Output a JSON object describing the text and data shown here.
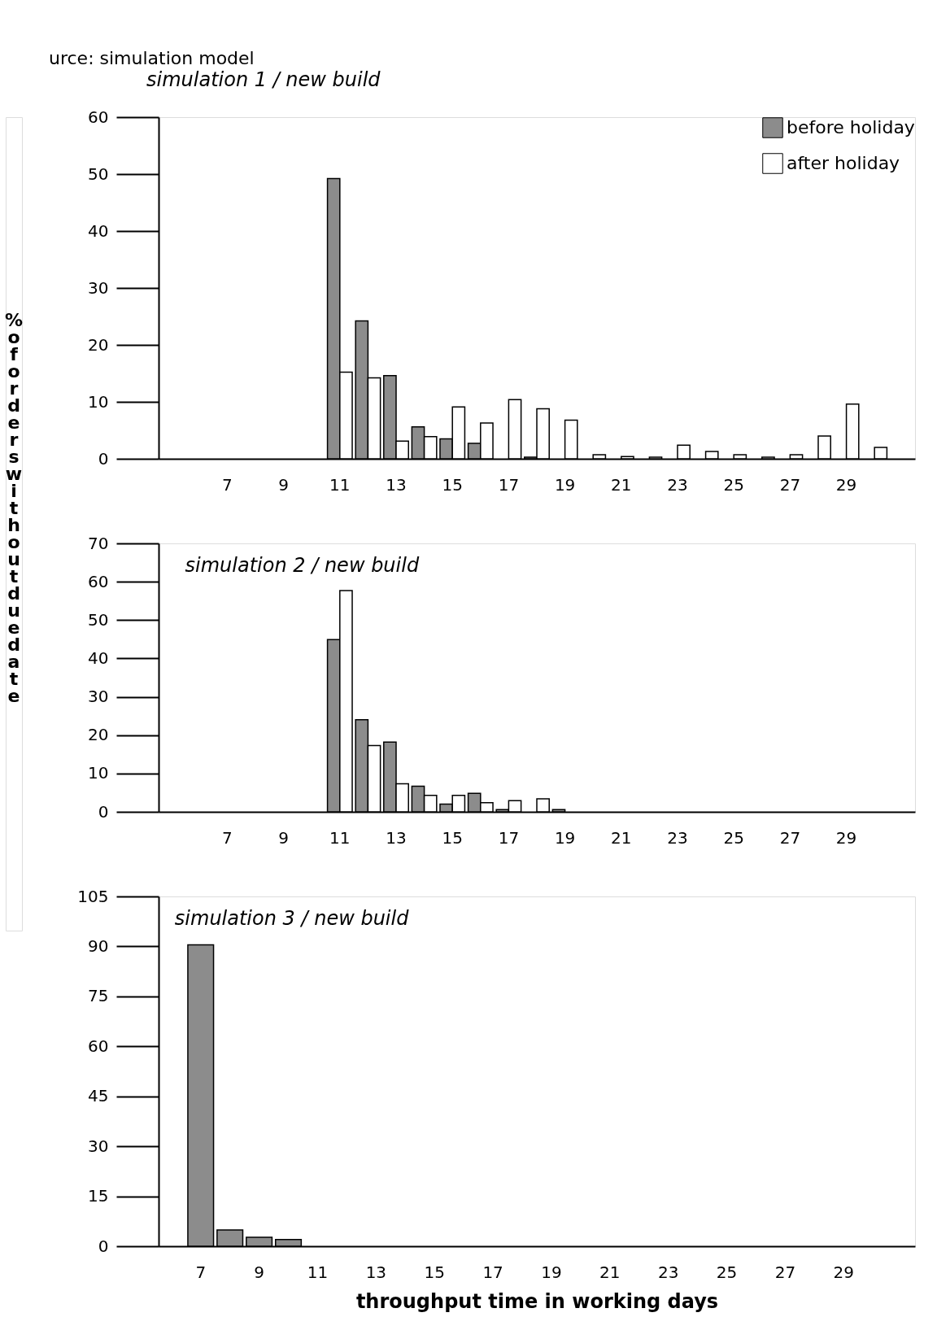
{
  "chart_data": [
    {
      "type": "bar",
      "title": "simulation 1 / new build",
      "ylabel": "% of orders without due date",
      "annotations": [
        "urce: simulation model"
      ],
      "legend": "top right",
      "categories": [
        null,
        null,
        "7",
        null,
        "9",
        null,
        "11",
        null,
        "13",
        null,
        "15",
        null,
        "17",
        null,
        "19",
        null,
        "21",
        null,
        "23",
        null,
        "25",
        null,
        "27",
        null,
        "29",
        null,
        null
      ],
      "ylim": [
        0,
        60
      ],
      "yticks": [
        0,
        10,
        20,
        30,
        40,
        50,
        60
      ],
      "series": [
        {
          "name": "before holiday",
          "color": "#8c8c8c",
          "values": [
            null,
            null,
            null,
            null,
            null,
            null,
            49.2,
            24.2,
            14.6,
            5.6,
            3.5,
            2.7,
            null,
            0.3,
            null,
            null,
            null,
            null,
            null,
            null,
            null,
            null,
            null,
            null,
            null,
            null,
            null
          ]
        },
        {
          "name": "after holiday",
          "color": "#ffffff",
          "values": [
            null,
            null,
            null,
            null,
            null,
            null,
            15.2,
            14.2,
            3.1,
            3.9,
            9.1,
            6.3,
            10.4,
            8.8,
            6.8,
            0.7,
            0.4,
            0.3,
            2.4,
            1.3,
            0.7,
            0.3,
            0.7,
            4.0,
            9.6,
            2.0,
            null
          ]
        }
      ]
    },
    {
      "type": "bar",
      "title": "simulation 2 / new build",
      "categories": [
        null,
        null,
        "7",
        null,
        "9",
        null,
        "11",
        null,
        "13",
        null,
        "15",
        null,
        "17",
        null,
        "19",
        null,
        "21",
        null,
        "23",
        null,
        "25",
        null,
        "27",
        null,
        "29",
        null,
        null
      ],
      "ylim": [
        0,
        70
      ],
      "yticks": [
        0,
        10,
        20,
        30,
        40,
        50,
        60,
        70
      ],
      "series": [
        {
          "color": "#8c8c8c",
          "values": [
            null,
            null,
            null,
            null,
            null,
            null,
            44.9,
            24.0,
            18.2,
            6.7,
            2.0,
            4.8,
            0.6,
            null,
            0.6,
            null,
            null,
            null,
            null,
            null,
            null,
            null,
            null,
            null,
            null,
            null,
            null
          ]
        },
        {
          "color": "#ffffff",
          "values": [
            null,
            null,
            null,
            null,
            null,
            null,
            57.7,
            17.3,
            7.3,
            4.3,
            4.3,
            2.4,
            2.9,
            3.4,
            null,
            null,
            null,
            null,
            null,
            null,
            null,
            null,
            null,
            null,
            null,
            null,
            null
          ]
        }
      ]
    },
    {
      "type": "bar",
      "title": "simulation 3 / new build",
      "xlabel": "throughput time in working days",
      "categories": [
        null,
        "7",
        null,
        "9",
        null,
        "11",
        null,
        "13",
        null,
        "15",
        null,
        "17",
        null,
        "19",
        null,
        "21",
        null,
        "23",
        null,
        "25",
        null,
        "27",
        null,
        "29",
        null,
        null
      ],
      "ylim": [
        0,
        105
      ],
      "yticks": [
        0,
        15,
        30,
        45,
        60,
        75,
        90,
        105
      ],
      "series": [
        {
          "color": "#8c8c8c",
          "values": [
            null,
            90.5,
            4.9,
            2.7,
            2.0,
            null,
            null,
            null,
            null,
            null,
            null,
            null,
            null,
            null,
            null,
            null,
            null,
            null,
            null,
            null,
            null,
            null,
            null,
            null,
            null,
            null
          ]
        }
      ]
    }
  ]
}
